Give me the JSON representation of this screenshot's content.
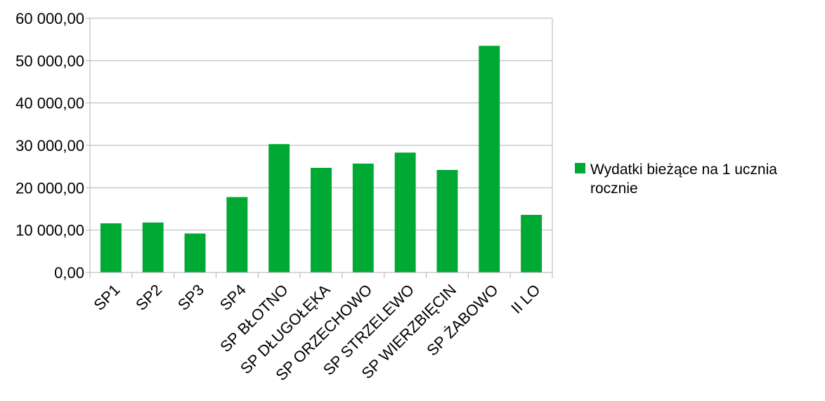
{
  "chart_data": {
    "type": "bar",
    "categories": [
      "SP1",
      "SP2",
      "SP3",
      "SP4",
      "SP BŁOTNO",
      "SP DŁUGOŁĘKA",
      "SP ORZECHOWO",
      "SP STRZELEWO",
      "SP WIERZBIĘCIN",
      "SP ŻABOWO",
      "II LO"
    ],
    "series": [
      {
        "name": "Wydatki bieżące na 1 ucznia rocznie",
        "values": [
          11600,
          11800,
          9200,
          17800,
          30300,
          24700,
          25700,
          28300,
          24200,
          53500,
          13600
        ],
        "color": "#00a933"
      }
    ],
    "y_ticks": [
      "0,00",
      "10 000,00",
      "20 000,00",
      "30 000,00",
      "40 000,00",
      "50 000,00",
      "60 000,00"
    ],
    "ylim": [
      0,
      60000
    ],
    "grid": true,
    "legend_position": "right",
    "title": "",
    "xlabel": "",
    "ylabel": ""
  }
}
